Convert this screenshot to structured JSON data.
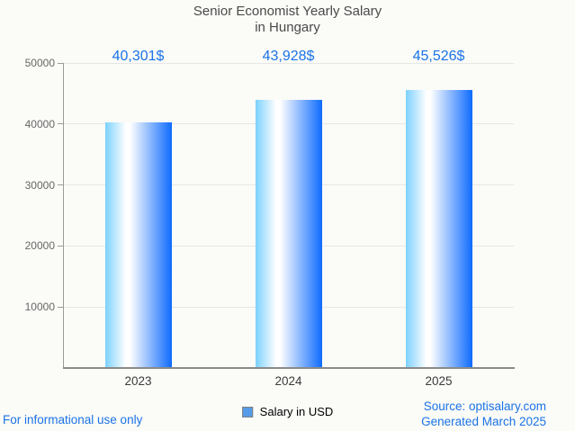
{
  "chart_data": {
    "type": "bar",
    "title": "Senior Economist Yearly Salary in Hungary",
    "title_lines": [
      "Senior Economist Yearly Salary",
      "in Hungary"
    ],
    "categories": [
      "2023",
      "2024",
      "2025"
    ],
    "values": [
      40301,
      43928,
      45526
    ],
    "value_labels": [
      "40,301$",
      "43,928$",
      "45,526$"
    ],
    "series_name": "Salary in USD",
    "legend": "Salary in USD",
    "legend_position": "bottom",
    "xlabel": "",
    "ylabel": "",
    "ylim": [
      0,
      50000
    ],
    "yticks": [
      10000,
      20000,
      30000,
      40000,
      50000
    ],
    "ytick_labels": [
      "10000",
      "20000",
      "30000",
      "40000",
      "50000"
    ],
    "grid": true
  },
  "footer": {
    "left": "For informational use only",
    "source": "Source: optisalary.com",
    "generated": "Generated March 2025"
  },
  "colors": {
    "background": "#fbfbf7",
    "accent_blue": "#1a73e8",
    "title_text": "#4a4a4a",
    "ytick_text": "#666666",
    "xtick_text": "#3b3b3b",
    "gridline": "#e6e6e6",
    "axis_line": "#9b9b9b",
    "baseline": "#8a8a8a",
    "legend_text": "#000000",
    "legend_marker_fill": "#559be8",
    "legend_marker_border": "#808080",
    "bar_gradient_start": "#7cd1fd",
    "bar_gradient_mid": "#ffffff",
    "bar_gradient_end": "#0e6bfd"
  }
}
